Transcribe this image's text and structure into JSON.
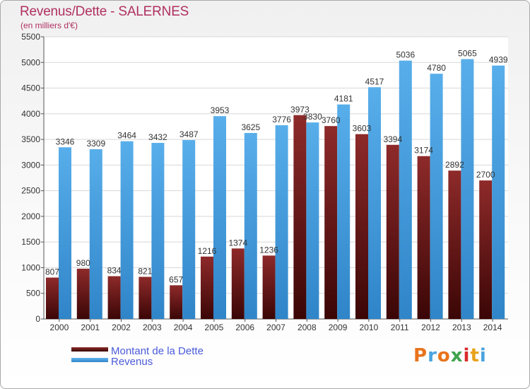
{
  "header": {
    "title": "Revenus/Dette - SALERNES",
    "subtitle": "(en milliers d'€)"
  },
  "legend": {
    "debt_label": "Montant de la Dette",
    "revenue_label": "Revenus"
  },
  "logo": {
    "text": "Proxiti",
    "colors": [
      "#e8731c",
      "#4aa3df",
      "#e8731c",
      "#3fa34d",
      "#d92b2b",
      "#e8a21c",
      "#4aa3df"
    ]
  },
  "colors": {
    "debt": "#7a1e1e",
    "revenue": "#4ba3e3",
    "title": "#b03060",
    "legend_text": "#4a5ad8"
  },
  "chart_data": {
    "type": "bar",
    "title": "Revenus/Dette - SALERNES",
    "subtitle": "(en milliers d'€)",
    "categories": [
      "2000",
      "2001",
      "2002",
      "2003",
      "2004",
      "2005",
      "2006",
      "2007",
      "2008",
      "2009",
      "2010",
      "2011",
      "2012",
      "2013",
      "2014"
    ],
    "series": [
      {
        "name": "Montant de la Dette",
        "values": [
          807,
          980,
          834,
          821,
          657,
          1216,
          1374,
          1236,
          3973,
          3760,
          3603,
          3394,
          3174,
          2892,
          2700
        ],
        "labels": [
          "807",
          "980",
          "834",
          "821",
          "657",
          "1216",
          "1374",
          "1236",
          "3973",
          "3760",
          "3603",
          "3394",
          "3174",
          "2892",
          "2700"
        ]
      },
      {
        "name": "Revenus",
        "values": [
          3346,
          3309,
          3464,
          3432,
          3487,
          3953,
          3625,
          3776,
          3830,
          4181,
          4517,
          5036,
          4780,
          5065,
          4939
        ],
        "labels": [
          "3346",
          "3309",
          "3464",
          "3432",
          "3487",
          "3953",
          "3625",
          "3776",
          "3830",
          "4181",
          "4517",
          "5036",
          "4780",
          "5065",
          "4939"
        ]
      }
    ],
    "ylim": [
      0,
      5500
    ],
    "yticks": [
      0,
      500,
      1000,
      1500,
      2000,
      2500,
      3000,
      3500,
      4000,
      4500,
      5000,
      5500
    ],
    "grid": true,
    "legend_position": "bottom-left"
  }
}
